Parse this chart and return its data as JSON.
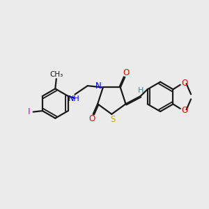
{
  "bg_color": "#ebebeb",
  "bond_color": "#1a1a1a",
  "N_color": "#0000ff",
  "S_color": "#ccaa00",
  "O_color": "#ff0000",
  "I_color": "#cc00cc",
  "H_color": "#2e8b8b",
  "line_width": 1.6,
  "dbo": 0.055,
  "xlim": [
    0,
    10
  ],
  "ylim": [
    0,
    10
  ]
}
